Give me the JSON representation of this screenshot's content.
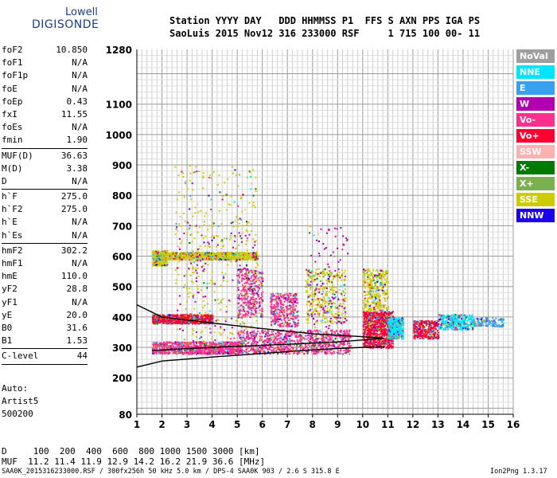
{
  "logo": {
    "line1": "Lowell",
    "line2": "DIGISONDE"
  },
  "header": {
    "line1": "Station YYYY DAY   DDD HHMMSS P1  FFS S AXN PPS IGA PS",
    "line2": "SaoLuis 2015 Nov12 316 233000 RSF     1 715 100 00- 11"
  },
  "params": [
    {
      "k": "foF2",
      "v": "10.850"
    },
    {
      "k": "foF1",
      "v": "N/A"
    },
    {
      "k": "foF1p",
      "v": "N/A"
    },
    {
      "k": "foE",
      "v": "N/A"
    },
    {
      "k": "foEp",
      "v": "0.43"
    },
    {
      "k": "fxI",
      "v": "11.55"
    },
    {
      "k": "foEs",
      "v": "N/A"
    },
    {
      "k": "fmin",
      "v": "1.90"
    },
    {
      "sep": true
    },
    {
      "k": "MUF(D)",
      "v": "36.63"
    },
    {
      "k": "M(D)",
      "v": "3.38"
    },
    {
      "k": "D",
      "v": "N/A"
    },
    {
      "sep": true
    },
    {
      "k": "h`F",
      "v": "275.0"
    },
    {
      "k": "h`F2",
      "v": "275.0"
    },
    {
      "k": "h`E",
      "v": "N/A"
    },
    {
      "k": "h`Es",
      "v": "N/A"
    },
    {
      "sep": true
    },
    {
      "k": "hmF2",
      "v": "302.2"
    },
    {
      "k": "hmF1",
      "v": "N/A"
    },
    {
      "k": "hmE",
      "v": "110.0"
    },
    {
      "k": "yF2",
      "v": "28.8"
    },
    {
      "k": "yF1",
      "v": "N/A"
    },
    {
      "k": "yE",
      "v": "20.0"
    },
    {
      "k": "B0",
      "v": "31.6"
    },
    {
      "k": "B1",
      "v": "1.53"
    },
    {
      "sep": true
    },
    {
      "k": "C-level",
      "v": "44"
    },
    {
      "sep": true
    }
  ],
  "auto": [
    "Auto:",
    "Artist5",
    "500200"
  ],
  "dmuf": {
    "line1": "D     100  200  400  600  800 1000 1500 3000 [km]",
    "line2": "MUF  11.2 11.4 11.9 12.9 14.2 16.2 21.9 36.6 [MHz]"
  },
  "footer": {
    "left": "SAA0K_2015316233000.RSF / 300fx256h 50 kHz 5.0 km / DPS-4 SAA0K 903 / 2.6 S 315.8 E",
    "right": "Ion2Png 1.3.17"
  },
  "legend": [
    {
      "label": "NoVal",
      "color": "#9e9e9e"
    },
    {
      "label": "NNE",
      "color": "#00e5ff"
    },
    {
      "label": "E",
      "color": "#39a0f0"
    },
    {
      "label": "W",
      "color": "#b000b0"
    },
    {
      "label": "Vo-",
      "color": "#ff2f8f"
    },
    {
      "label": "Vo+",
      "color": "#ff0033"
    },
    {
      "label": "SSW",
      "color": "#ffb0b0"
    },
    {
      "label": "X-",
      "color": "#007a00"
    },
    {
      "label": "X+",
      "color": "#7ab050"
    },
    {
      "label": "SSE",
      "color": "#cccc00"
    },
    {
      "label": "NNW",
      "color": "#1a00ee"
    }
  ],
  "chart_data": {
    "type": "scatter",
    "title": "",
    "xlabel": "",
    "ylabel": "",
    "xlim": [
      1,
      16
    ],
    "ylim": [
      80,
      1280
    ],
    "xticks": [
      1,
      2,
      3,
      4,
      5,
      6,
      7,
      8,
      9,
      10,
      11,
      12,
      13,
      14,
      15,
      16
    ],
    "yticks": [
      80,
      200,
      300,
      400,
      500,
      600,
      700,
      800,
      900,
      1000,
      1100,
      1280
    ],
    "grid": true,
    "trace_bands": [
      {
        "x": [
          1.6,
          5.2
        ],
        "y": [
          280,
          320
        ],
        "color": "#ff2f8f",
        "density": "high"
      },
      {
        "x": [
          1.6,
          4.0
        ],
        "y": [
          380,
          410
        ],
        "color": "#ff0033",
        "density": "high"
      },
      {
        "x": [
          1.6,
          2.2
        ],
        "y": [
          570,
          620
        ],
        "color": "#cccc00",
        "density": "medium"
      },
      {
        "x": [
          2.0,
          5.8
        ],
        "y": [
          590,
          615
        ],
        "color": "#cccc00",
        "density": "high"
      },
      {
        "x": [
          2.5,
          5.8
        ],
        "y": [
          320,
          900
        ],
        "color": "#cccc00",
        "density": "medium"
      },
      {
        "x": [
          2.5,
          5.8
        ],
        "y": [
          320,
          720
        ],
        "color": "#b000b0",
        "density": "low"
      },
      {
        "x": [
          5.0,
          6.0
        ],
        "y": [
          400,
          560
        ],
        "color": "#ff2f8f",
        "density": "medium"
      },
      {
        "x": [
          6.3,
          7.4
        ],
        "y": [
          370,
          480
        ],
        "color": "#ff2f8f",
        "density": "medium"
      },
      {
        "x": [
          7.7,
          9.3
        ],
        "y": [
          380,
          560
        ],
        "color": "#cccc00",
        "density": "medium"
      },
      {
        "x": [
          5.0,
          9.5
        ],
        "y": [
          280,
          360
        ],
        "color": "#ff2f8f",
        "density": "high"
      },
      {
        "x": [
          7.8,
          9.4
        ],
        "y": [
          300,
          700
        ],
        "color": "#b000b0",
        "density": "low"
      },
      {
        "x": [
          10.0,
          11.2
        ],
        "y": [
          300,
          420
        ],
        "color": "#ff0033",
        "density": "high"
      },
      {
        "x": [
          10.0,
          11.0
        ],
        "y": [
          420,
          560
        ],
        "color": "#cccc00",
        "density": "medium"
      },
      {
        "x": [
          11.0,
          11.6
        ],
        "y": [
          330,
          400
        ],
        "color": "#00e5ff",
        "density": "medium"
      },
      {
        "x": [
          12.0,
          13.0
        ],
        "y": [
          330,
          390
        ],
        "color": "#ff0033",
        "density": "medium"
      },
      {
        "x": [
          13.0,
          14.4
        ],
        "y": [
          360,
          410
        ],
        "color": "#00e5ff",
        "density": "medium"
      },
      {
        "x": [
          14.4,
          15.6
        ],
        "y": [
          370,
          400
        ],
        "color": "#39a0f0",
        "density": "low"
      }
    ],
    "profile_curves": [
      {
        "name": "",
        "points": [
          [
            1.0,
            235
          ],
          [
            2.0,
            255
          ],
          [
            4.0,
            268
          ],
          [
            6.0,
            280
          ],
          [
            8.0,
            292
          ],
          [
            10.0,
            300
          ],
          [
            10.85,
            302
          ]
        ]
      },
      {
        "name": "",
        "points": [
          [
            1.6,
            290
          ],
          [
            4.0,
            300
          ],
          [
            7.0,
            310
          ],
          [
            9.0,
            318
          ],
          [
            10.85,
            330
          ]
        ]
      },
      {
        "name": "",
        "points": [
          [
            1.0,
            440
          ],
          [
            2.0,
            400
          ],
          [
            4.0,
            380
          ],
          [
            6.0,
            362
          ],
          [
            8.0,
            345
          ],
          [
            10.0,
            335
          ],
          [
            10.85,
            330
          ]
        ]
      }
    ]
  }
}
